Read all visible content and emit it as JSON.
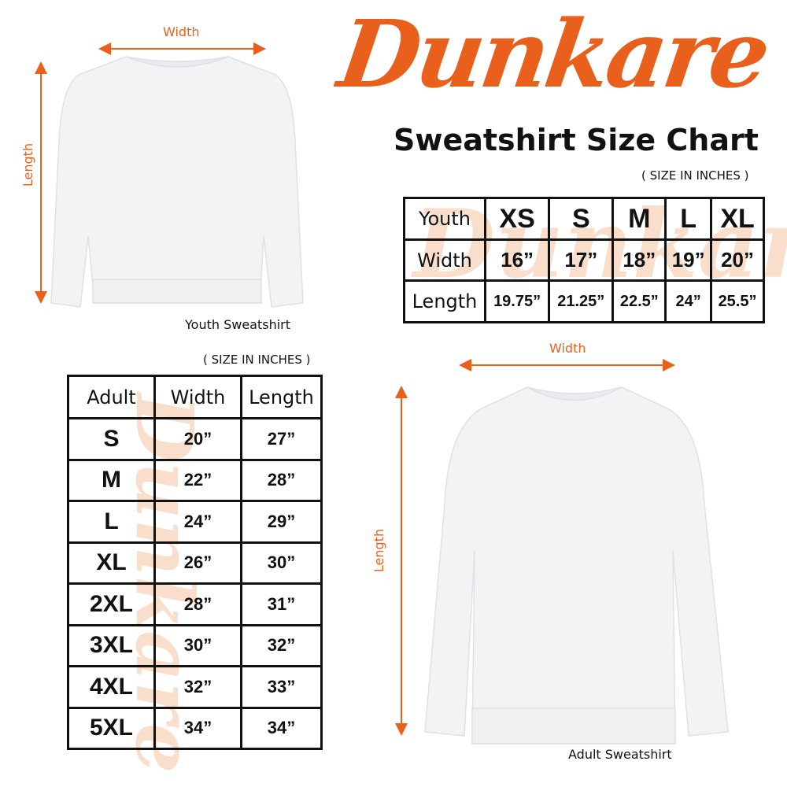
{
  "logo": "Dunkare",
  "title": "Sweatshirt Size Chart",
  "colors": {
    "accent": "#e8601c",
    "garment": "#f2f3f5"
  },
  "youth": {
    "width_label": "Width",
    "length_label": "Length",
    "caption": "Youth Sweatshirt",
    "note": "( SIZE IN INCHES )",
    "table": {
      "header": [
        "Youth",
        "XS",
        "S",
        "M",
        "L",
        "XL"
      ],
      "rows": [
        [
          "Width",
          "16”",
          "17”",
          "18”",
          "19”",
          "20”"
        ],
        [
          "Length",
          "19.75”",
          "21.25”",
          "22.5”",
          "24”",
          "25.5”"
        ]
      ]
    }
  },
  "adult": {
    "width_label": "Width",
    "length_label": "Length",
    "caption": "Adult Sweatshirt",
    "note": "( SIZE IN INCHES )",
    "table": {
      "header": [
        "Adult",
        "Width",
        "Length"
      ],
      "rows": [
        [
          "S",
          "20”",
          "27”"
        ],
        [
          "M",
          "22”",
          "28”"
        ],
        [
          "L",
          "24”",
          "29”"
        ],
        [
          "XL",
          "26”",
          "30”"
        ],
        [
          "2XL",
          "28”",
          "31”"
        ],
        [
          "3XL",
          "30”",
          "32”"
        ],
        [
          "4XL",
          "32”",
          "33”"
        ],
        [
          "5XL",
          "34”",
          "34”"
        ]
      ]
    }
  }
}
